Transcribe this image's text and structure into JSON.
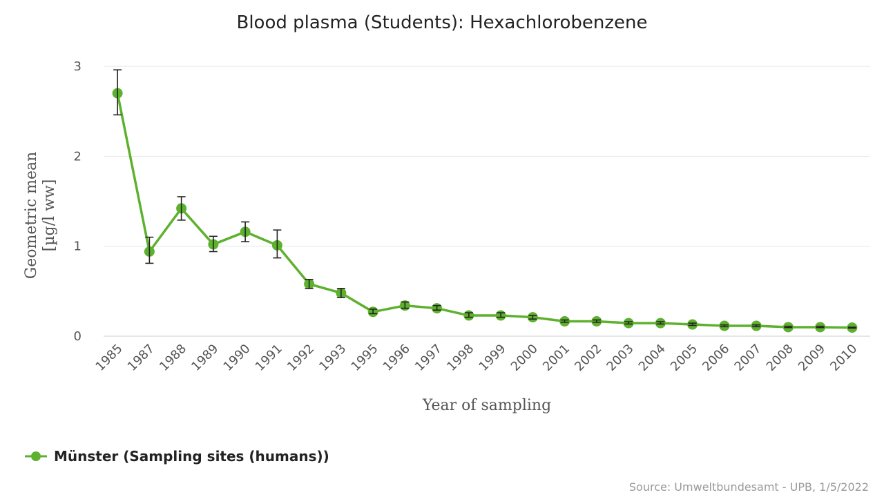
{
  "chart_data": {
    "type": "line",
    "title": "Blood plasma (Students): Hexachlorobenzene",
    "xlabel": "Year of sampling",
    "ylabel": "Geometric mean",
    "ylabel_unit": "[µg/l ww]",
    "ylim": [
      0,
      3
    ],
    "yticks": [
      "0",
      "1",
      "2",
      "3"
    ],
    "grid": true,
    "legend_position": "bottom-left",
    "categories": [
      "1985",
      "1987",
      "1988",
      "1989",
      "1990",
      "1991",
      "1992",
      "1993",
      "1995",
      "1996",
      "1997",
      "1998",
      "1999",
      "2000",
      "2001",
      "2002",
      "2003",
      "2004",
      "2005",
      "2006",
      "2007",
      "2008",
      "2009",
      "2010"
    ],
    "series": [
      {
        "name": "Münster (Sampling sites (humans))",
        "color": "#5db12e",
        "values": [
          2.7,
          0.94,
          1.42,
          1.02,
          1.16,
          1.01,
          0.58,
          0.48,
          0.27,
          0.34,
          0.31,
          0.23,
          0.23,
          0.21,
          0.165,
          0.165,
          0.145,
          0.145,
          0.13,
          0.115,
          0.115,
          0.1,
          0.1,
          0.095
        ],
        "error_low": [
          2.46,
          0.81,
          1.29,
          0.94,
          1.05,
          0.87,
          0.53,
          0.43,
          0.25,
          0.31,
          0.29,
          0.21,
          0.21,
          0.19,
          0.155,
          0.155,
          0.135,
          0.135,
          0.12,
          0.105,
          0.105,
          0.095,
          0.095,
          0.09
        ],
        "error_high": [
          2.96,
          1.1,
          1.55,
          1.11,
          1.27,
          1.18,
          0.63,
          0.53,
          0.3,
          0.38,
          0.34,
          0.26,
          0.26,
          0.23,
          0.18,
          0.18,
          0.16,
          0.16,
          0.145,
          0.125,
          0.125,
          0.11,
          0.11,
          0.1
        ]
      }
    ],
    "source": "Source: Umweltbundesamt - UPB, 1/5/2022"
  },
  "colors": {
    "series": "#5db12e",
    "error_bar": "#222222",
    "grid": "#e6e6e6",
    "axis": "#cccccc"
  }
}
